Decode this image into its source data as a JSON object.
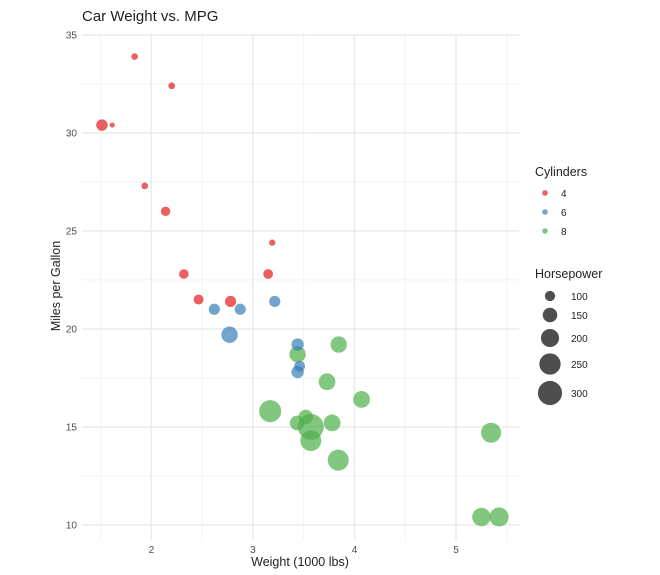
{
  "chart_data": {
    "type": "scatter",
    "title": "Car Weight vs. MPG",
    "xlabel": "Weight (1000 lbs)",
    "ylabel": "Miles per Gallon",
    "xlim": [
      1.317,
      5.62
    ],
    "ylim": [
      9.225,
      35.075
    ],
    "xticks": [
      2,
      3,
      4,
      5
    ],
    "yticks": [
      10,
      15,
      20,
      25,
      30,
      35
    ],
    "grid": true,
    "legend_placement": "right",
    "colors": {
      "4": "#E41A1C",
      "6": "#377EB8",
      "8": "#4DAF4A"
    },
    "color_legend": {
      "title": "Cylinders",
      "entries": [
        "4",
        "6",
        "8"
      ]
    },
    "size_legend": {
      "title": "Horsepower",
      "entries": [
        100,
        150,
        200,
        250,
        300
      ]
    },
    "hp_range": [
      52,
      335
    ],
    "points": [
      {
        "wt": 2.62,
        "mpg": 21.0,
        "cyl": "6",
        "hp": 110
      },
      {
        "wt": 2.875,
        "mpg": 21.0,
        "cyl": "6",
        "hp": 110
      },
      {
        "wt": 2.32,
        "mpg": 22.8,
        "cyl": "4",
        "hp": 93
      },
      {
        "wt": 3.215,
        "mpg": 21.4,
        "cyl": "6",
        "hp": 110
      },
      {
        "wt": 3.44,
        "mpg": 18.7,
        "cyl": "8",
        "hp": 175
      },
      {
        "wt": 3.46,
        "mpg": 18.1,
        "cyl": "6",
        "hp": 105
      },
      {
        "wt": 3.57,
        "mpg": 14.3,
        "cyl": "8",
        "hp": 245
      },
      {
        "wt": 3.19,
        "mpg": 24.4,
        "cyl": "4",
        "hp": 62
      },
      {
        "wt": 3.15,
        "mpg": 22.8,
        "cyl": "4",
        "hp": 95
      },
      {
        "wt": 3.44,
        "mpg": 19.2,
        "cyl": "6",
        "hp": 123
      },
      {
        "wt": 3.44,
        "mpg": 17.8,
        "cyl": "6",
        "hp": 123
      },
      {
        "wt": 4.07,
        "mpg": 16.4,
        "cyl": "8",
        "hp": 180
      },
      {
        "wt": 3.73,
        "mpg": 17.3,
        "cyl": "8",
        "hp": 180
      },
      {
        "wt": 3.78,
        "mpg": 15.2,
        "cyl": "8",
        "hp": 180
      },
      {
        "wt": 5.25,
        "mpg": 10.4,
        "cyl": "8",
        "hp": 205
      },
      {
        "wt": 5.424,
        "mpg": 10.4,
        "cyl": "8",
        "hp": 215
      },
      {
        "wt": 5.345,
        "mpg": 14.7,
        "cyl": "8",
        "hp": 230
      },
      {
        "wt": 2.2,
        "mpg": 32.4,
        "cyl": "4",
        "hp": 66
      },
      {
        "wt": 1.615,
        "mpg": 30.4,
        "cyl": "4",
        "hp": 52
      },
      {
        "wt": 1.835,
        "mpg": 33.9,
        "cyl": "4",
        "hp": 65
      },
      {
        "wt": 2.465,
        "mpg": 21.5,
        "cyl": "4",
        "hp": 97
      },
      {
        "wt": 3.52,
        "mpg": 15.5,
        "cyl": "8",
        "hp": 150
      },
      {
        "wt": 3.435,
        "mpg": 15.2,
        "cyl": "8",
        "hp": 150
      },
      {
        "wt": 3.84,
        "mpg": 13.3,
        "cyl": "8",
        "hp": 245
      },
      {
        "wt": 3.845,
        "mpg": 19.2,
        "cyl": "8",
        "hp": 175
      },
      {
        "wt": 1.935,
        "mpg": 27.3,
        "cyl": "4",
        "hp": 66
      },
      {
        "wt": 2.14,
        "mpg": 26.0,
        "cyl": "4",
        "hp": 91
      },
      {
        "wt": 1.513,
        "mpg": 30.4,
        "cyl": "4",
        "hp": 113
      },
      {
        "wt": 3.17,
        "mpg": 15.8,
        "cyl": "8",
        "hp": 264
      },
      {
        "wt": 2.77,
        "mpg": 19.7,
        "cyl": "6",
        "hp": 175
      },
      {
        "wt": 3.57,
        "mpg": 15.0,
        "cyl": "8",
        "hp": 335
      },
      {
        "wt": 2.78,
        "mpg": 21.4,
        "cyl": "4",
        "hp": 109
      }
    ]
  }
}
